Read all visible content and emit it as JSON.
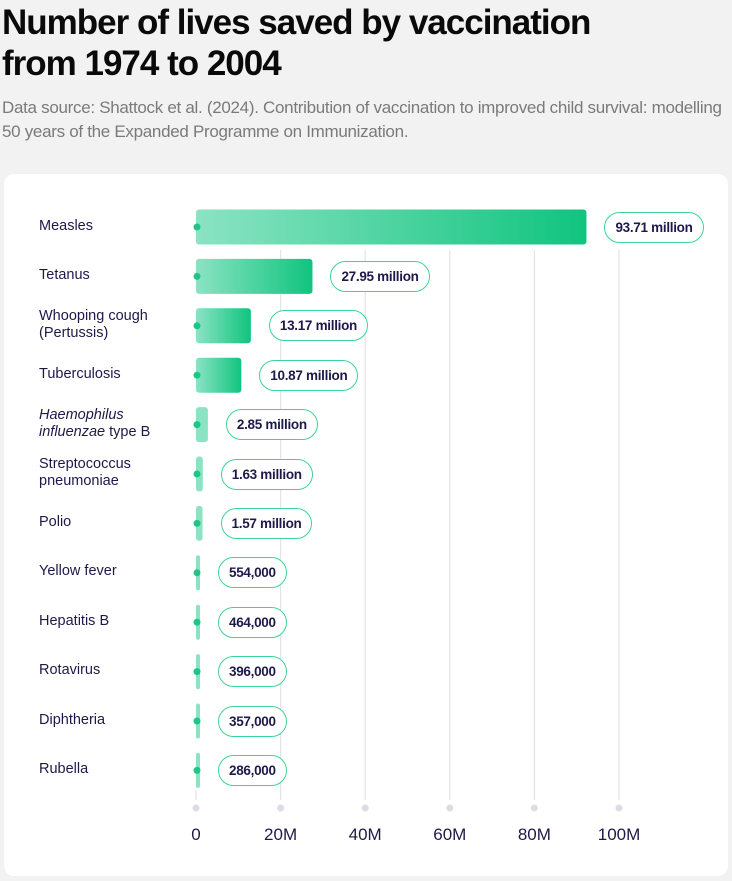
{
  "title": "Number of lives saved by vaccination from 1974 to 2004",
  "subtitle": "Data source: Shattock et al. (2024). Contribution of vaccination to improved child survival: modelling 50 years of the Expanded Programme on Immunization.",
  "chart_data": {
    "type": "bar",
    "orientation": "horizontal",
    "unit": "lives saved",
    "xlim": [
      0,
      100000000
    ],
    "x_ticks": [
      "0",
      "20M",
      "40M",
      "60M",
      "80M",
      "100M"
    ],
    "grid": true,
    "colors": {
      "bar_start": "#8be3c3",
      "bar_end": "#10c47f",
      "accent": "#3ed39a",
      "text": "#1d1a4a"
    },
    "categories": [
      {
        "lines": [
          "Measles"
        ]
      },
      {
        "lines": [
          "Tetanus"
        ]
      },
      {
        "lines": [
          "Whooping cough",
          "(Pertussis)"
        ]
      },
      {
        "lines": [
          "Tuberculosis"
        ]
      },
      {
        "lines": [
          "Haemophilus",
          "influenzae",
          " type B"
        ],
        "italic": [
          "Haemophilus",
          "influenzae"
        ]
      },
      {
        "lines": [
          "Streptococcus",
          "pneumoniae"
        ]
      },
      {
        "lines": [
          "Polio"
        ]
      },
      {
        "lines": [
          "Yellow fever"
        ]
      },
      {
        "lines": [
          "Hepatitis B"
        ]
      },
      {
        "lines": [
          "Rotavirus"
        ]
      },
      {
        "lines": [
          "Diphtheria"
        ]
      },
      {
        "lines": [
          "Rubella"
        ]
      }
    ],
    "values": [
      93710000,
      27950000,
      13170000,
      10870000,
      2850000,
      1630000,
      1570000,
      554000,
      464000,
      396000,
      357000,
      286000
    ],
    "data_labels": [
      "93.71 million",
      "27.95 million",
      "13.17 million",
      "10.87 million",
      "2.85 million",
      "1.63 million",
      "1.57 million",
      "554,000",
      "464,000",
      "396,000",
      "357,000",
      "286,000"
    ]
  }
}
